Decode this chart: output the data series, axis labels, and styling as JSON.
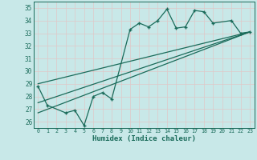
{
  "title": "",
  "xlabel": "Humidex (Indice chaleur)",
  "bg_color": "#c8e8e8",
  "grid_color": "#d4e8e0",
  "line_color": "#1a6b5a",
  "xlim": [
    -0.5,
    23.5
  ],
  "ylim": [
    25.5,
    35.5
  ],
  "yticks": [
    26,
    27,
    28,
    29,
    30,
    31,
    32,
    33,
    34,
    35
  ],
  "xticks": [
    0,
    1,
    2,
    3,
    4,
    5,
    6,
    7,
    8,
    9,
    10,
    11,
    12,
    13,
    14,
    15,
    16,
    17,
    18,
    19,
    20,
    21,
    22,
    23
  ],
  "series1_x": [
    0,
    1,
    3,
    4,
    5,
    6,
    7,
    8,
    10,
    11,
    12,
    13,
    14,
    15,
    16,
    17,
    18,
    19,
    21,
    22,
    23
  ],
  "series1_y": [
    28.8,
    27.3,
    26.7,
    26.9,
    25.7,
    28.0,
    28.3,
    27.8,
    33.3,
    33.8,
    33.5,
    34.0,
    34.9,
    33.4,
    33.5,
    34.8,
    34.7,
    33.8,
    34.0,
    33.0,
    33.1
  ],
  "line1_x": [
    0,
    23
  ],
  "line1_y": [
    29.0,
    33.1
  ],
  "line2_x": [
    0,
    23
  ],
  "line2_y": [
    27.5,
    33.1
  ],
  "line3_x": [
    0,
    23
  ],
  "line3_y": [
    26.7,
    33.1
  ]
}
